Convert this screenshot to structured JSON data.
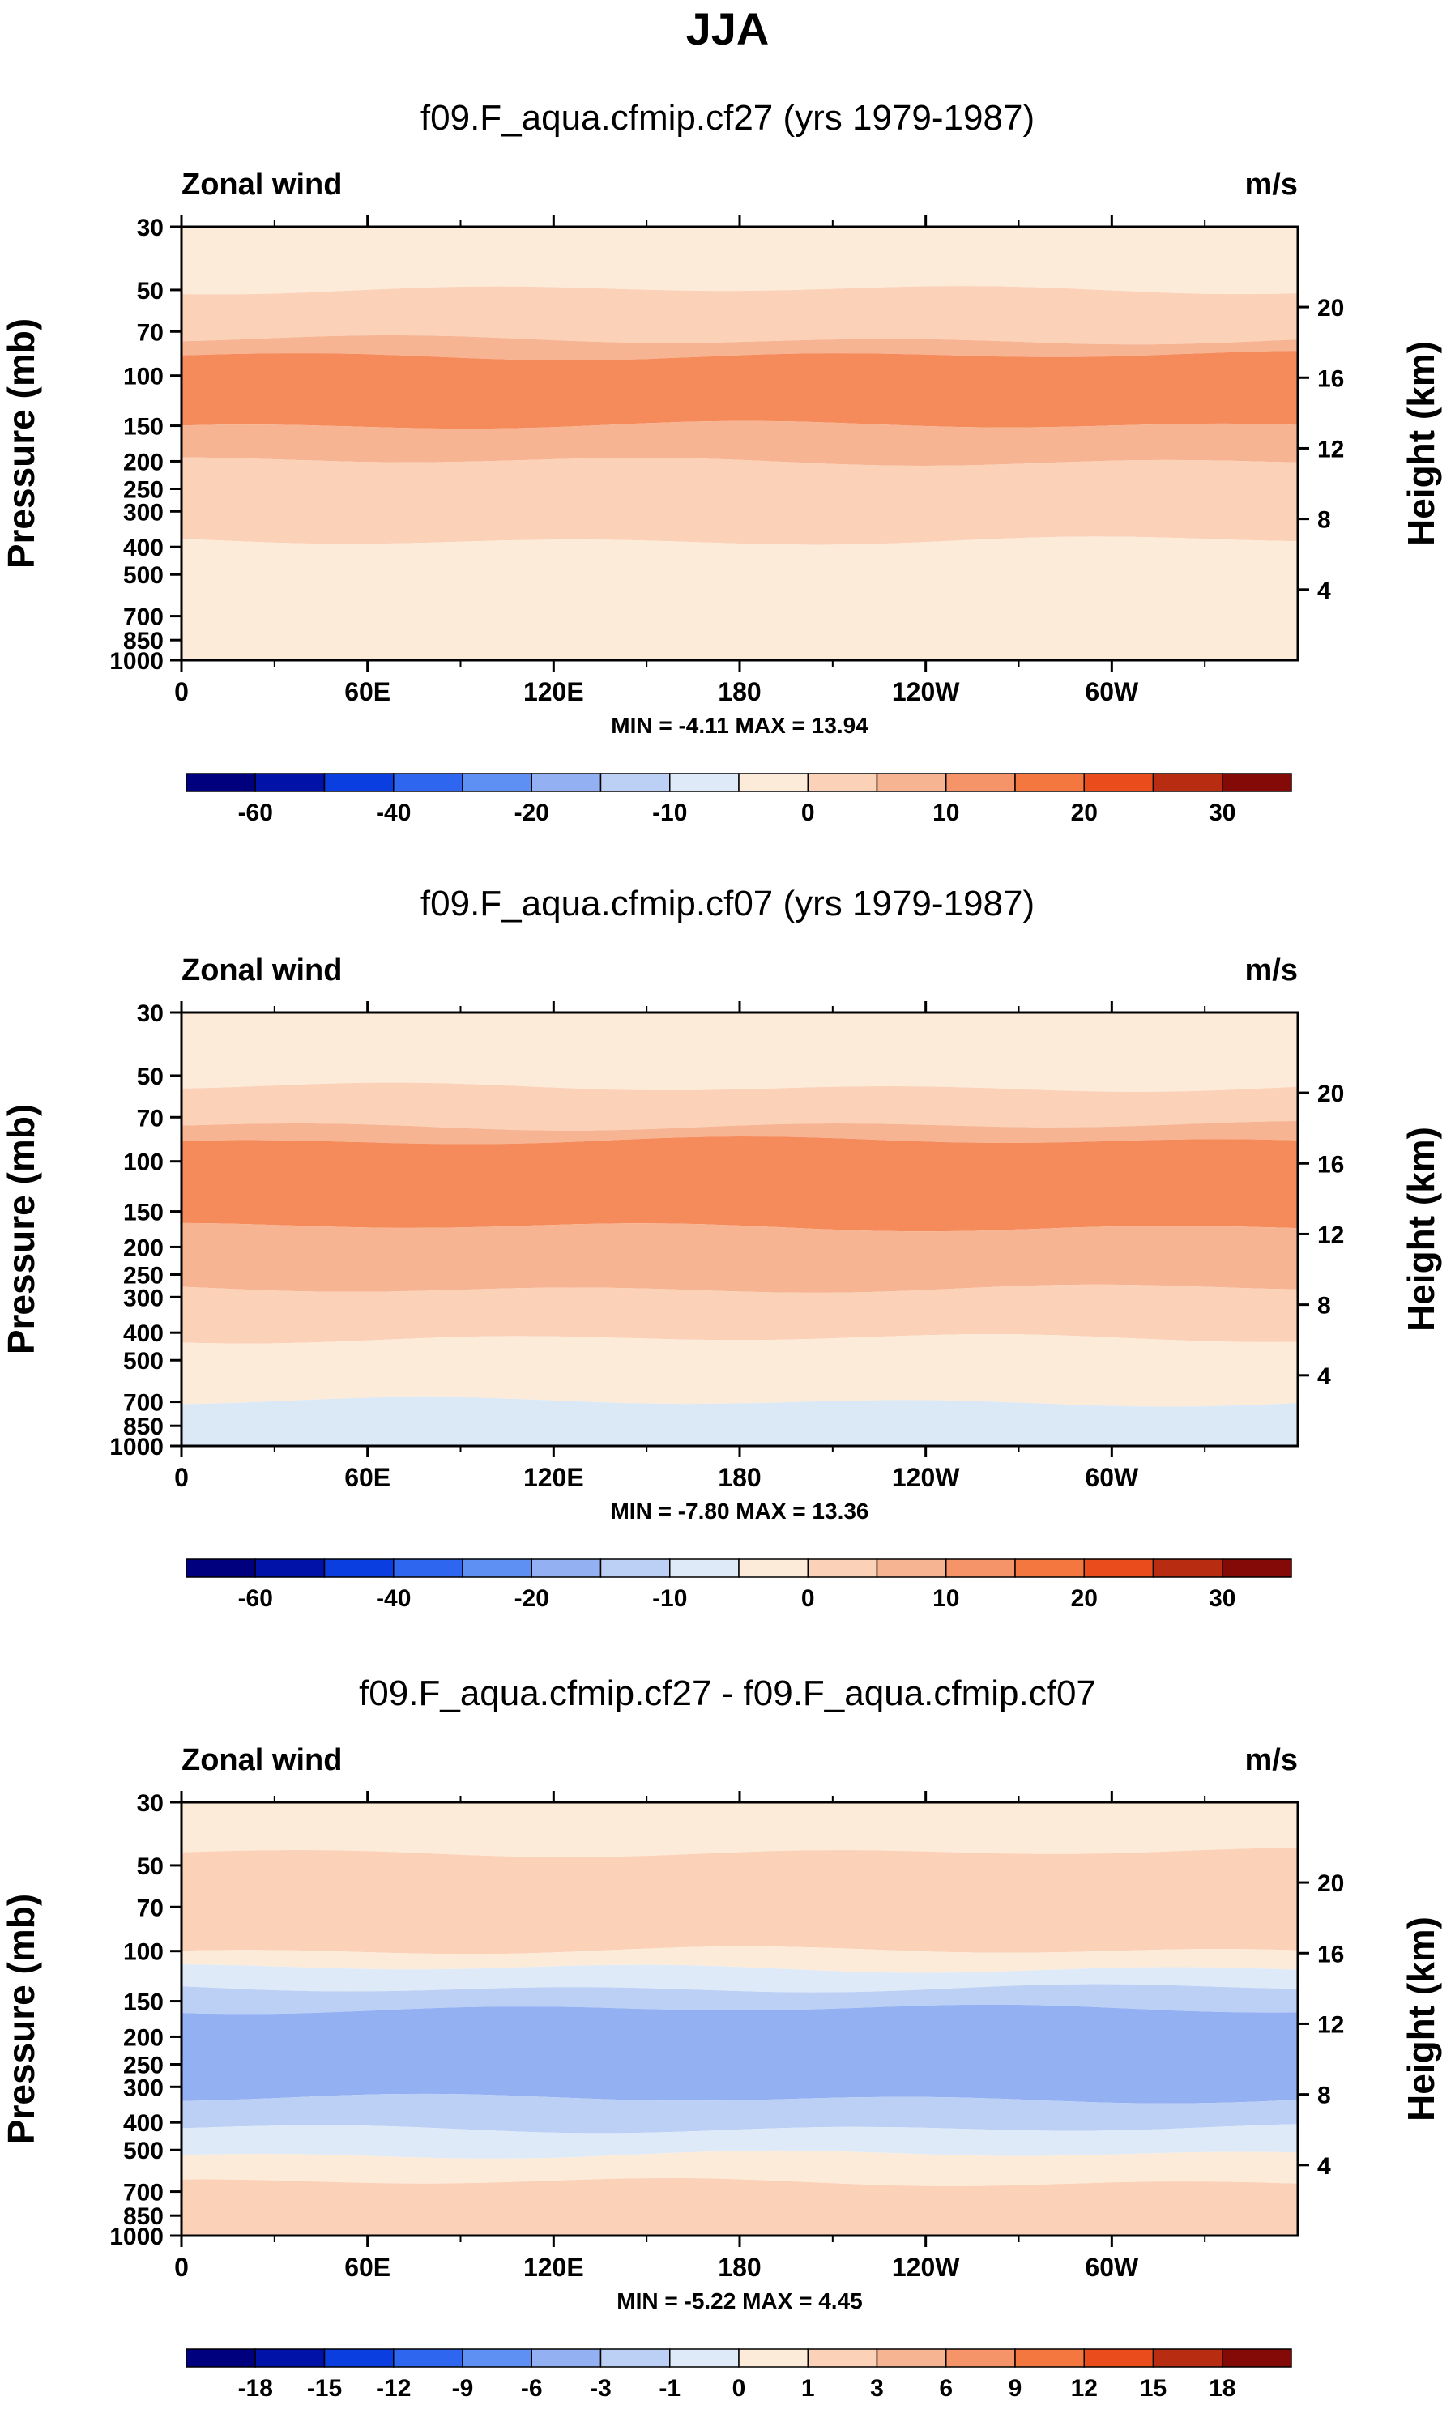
{
  "figure": {
    "title": "JJA"
  },
  "chart_data": [
    {
      "type": "heatmap",
      "title": "f09.F_aqua.cfmip.cf27 (yrs 1979-1987)",
      "left_label": "Zonal wind",
      "units": "m/s",
      "ylabel": "Pressure (mb)",
      "ylabel_right": "Height (km)",
      "x_ticks": [
        "0",
        "60E",
        "120E",
        "180",
        "120W",
        "60W"
      ],
      "y_ticks": [
        "30",
        "50",
        "70",
        "100",
        "150",
        "200",
        "250",
        "300",
        "400",
        "500",
        "700",
        "850",
        "1000"
      ],
      "height_ticks": [
        "20",
        "16",
        "12",
        "8",
        "4"
      ],
      "stats": "MIN = -4.11  MAX = 13.94",
      "colorbar_labels": [
        "-60",
        "-40",
        "-20",
        "-10",
        "0",
        "10",
        "20",
        "30"
      ],
      "bands": [
        {
          "bottom_mb": 30,
          "top_mb": 50,
          "level": "0 to 5"
        },
        {
          "bottom_mb": 50,
          "top_mb": 75,
          "level": "5 to 10"
        },
        {
          "bottom_mb": 75,
          "top_mb": 85,
          "level": "10 to 15"
        },
        {
          "bottom_mb": 85,
          "top_mb": 150,
          "level": "15 to 20"
        },
        {
          "bottom_mb": 150,
          "top_mb": 200,
          "level": "10 to 15"
        },
        {
          "bottom_mb": 200,
          "top_mb": 380,
          "level": "5 to 10"
        },
        {
          "bottom_mb": 380,
          "top_mb": 1000,
          "level": "0 to 5"
        }
      ]
    },
    {
      "type": "heatmap",
      "title": "f09.F_aqua.cfmip.cf07 (yrs 1979-1987)",
      "left_label": "Zonal wind",
      "units": "m/s",
      "ylabel": "Pressure (mb)",
      "ylabel_right": "Height (km)",
      "x_ticks": [
        "0",
        "60E",
        "120E",
        "180",
        "120W",
        "60W"
      ],
      "y_ticks": [
        "30",
        "50",
        "70",
        "100",
        "150",
        "200",
        "250",
        "300",
        "400",
        "500",
        "700",
        "850",
        "1000"
      ],
      "height_ticks": [
        "20",
        "16",
        "12",
        "8",
        "4"
      ],
      "stats": "MIN = -7.80  MAX = 13.36",
      "colorbar_labels": [
        "-60",
        "-40",
        "-20",
        "-10",
        "0",
        "10",
        "20",
        "30"
      ],
      "bands": [
        {
          "bottom_mb": 30,
          "top_mb": 55,
          "level": "0 to 5"
        },
        {
          "bottom_mb": 55,
          "top_mb": 75,
          "level": "5 to 10"
        },
        {
          "bottom_mb": 75,
          "top_mb": 85,
          "level": "10 to 15"
        },
        {
          "bottom_mb": 85,
          "top_mb": 170,
          "level": "15 to 20"
        },
        {
          "bottom_mb": 170,
          "top_mb": 280,
          "level": "10 to 15"
        },
        {
          "bottom_mb": 280,
          "top_mb": 420,
          "level": "5 to 10"
        },
        {
          "bottom_mb": 420,
          "top_mb": 700,
          "level": "0 to 5"
        },
        {
          "bottom_mb": 700,
          "top_mb": 1000,
          "level": "-5 to 0"
        }
      ]
    },
    {
      "type": "heatmap",
      "title": "f09.F_aqua.cfmip.cf27 - f09.F_aqua.cfmip.cf07",
      "left_label": "Zonal wind",
      "units": "m/s",
      "ylabel": "Pressure (mb)",
      "ylabel_right": "Height (km)",
      "x_ticks": [
        "0",
        "60E",
        "120E",
        "180",
        "120W",
        "60W"
      ],
      "y_ticks": [
        "30",
        "50",
        "70",
        "100",
        "150",
        "200",
        "250",
        "300",
        "400",
        "500",
        "700",
        "850",
        "1000"
      ],
      "height_ticks": [
        "20",
        "16",
        "12",
        "8",
        "4"
      ],
      "stats": "MIN = -5.22  MAX =  4.45",
      "colorbar_labels": [
        "-18",
        "-15",
        "-12",
        "-9",
        "-6",
        "-3",
        "-1",
        "0",
        "1",
        "3",
        "6",
        "9",
        "12",
        "15",
        "18"
      ],
      "bands": [
        {
          "bottom_mb": 30,
          "top_mb": 45,
          "level": "0 to 1"
        },
        {
          "bottom_mb": 45,
          "top_mb": 100,
          "level": "1 to 3"
        },
        {
          "bottom_mb": 100,
          "top_mb": 115,
          "level": "0 to 1"
        },
        {
          "bottom_mb": 115,
          "top_mb": 135,
          "level": "-1 to 0"
        },
        {
          "bottom_mb": 135,
          "top_mb": 160,
          "level": "-3 to -1"
        },
        {
          "bottom_mb": 160,
          "top_mb": 330,
          "level": "-6 to -3"
        },
        {
          "bottom_mb": 330,
          "top_mb": 420,
          "level": "-3 to -1"
        },
        {
          "bottom_mb": 420,
          "top_mb": 520,
          "level": "-1 to 0"
        },
        {
          "bottom_mb": 520,
          "top_mb": 650,
          "level": "0 to 1"
        },
        {
          "bottom_mb": 650,
          "top_mb": 1000,
          "level": "1 to 3"
        }
      ]
    }
  ],
  "colors": {
    "scale_a": [
      "#00007f",
      "#0012a8",
      "#0b3ee0",
      "#2f66f0",
      "#5e8ff2",
      "#93b1f2",
      "#bcd0f5",
      "#deeaf8",
      "#fdebd9",
      "#fbd1b8",
      "#f7b493",
      "#f59469",
      "#f57740",
      "#ea4c1c",
      "#b82d11",
      "#830a06"
    ],
    "scale_b": [
      "#00007f",
      "#0012a8",
      "#0b3ee0",
      "#2f66f0",
      "#5e8ff2",
      "#93b1f2",
      "#bcd0f5",
      "#deeaf8",
      "#fdebd9",
      "#fbd1b8",
      "#f7b493",
      "#f59469",
      "#f57740",
      "#ea4c1c",
      "#b82d11",
      "#830a06"
    ],
    "panel1": [
      "#fdebd9",
      "#fbd1b8",
      "#f7b493",
      "#f58a5a",
      "#f7b493",
      "#fbd1b8",
      "#fdebd9"
    ],
    "panel2": [
      "#fdebd9",
      "#fbd1b8",
      "#f7b493",
      "#f58a5a",
      "#f7b493",
      "#fbd1b8",
      "#fdebd9",
      "#dbe9f7"
    ],
    "panel3": [
      "#fdebd9",
      "#fbd1b8",
      "#fdebd9",
      "#deeaf8",
      "#bcd0f5",
      "#93b1f2",
      "#bcd0f5",
      "#deeaf8",
      "#fdebd9",
      "#fbd1b8"
    ]
  }
}
